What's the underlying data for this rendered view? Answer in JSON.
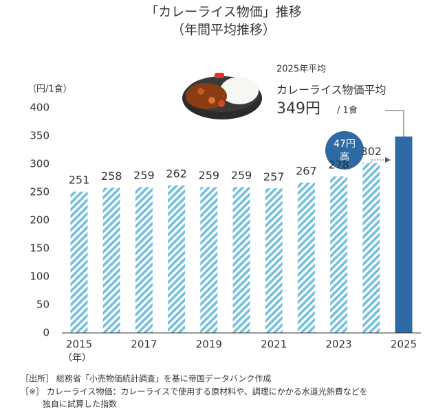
{
  "chart_data": {
    "type": "bar",
    "title": "「カレーライス物価」推移",
    "subtitle": "（年間平均推移）",
    "y_unit": "（円/1食）",
    "x_unit": "（年）",
    "categories": [
      "2015",
      null,
      "2017",
      null,
      "2019",
      null,
      "2021",
      null,
      "2023",
      null,
      "2025"
    ],
    "values": [
      251,
      258,
      259,
      262,
      259,
      259,
      257,
      267,
      278,
      302,
      349
    ],
    "colors": [
      "#74bfdc",
      "#74bfdc",
      "#74bfdc",
      "#74bfdc",
      "#74bfdc",
      "#74bfdc",
      "#74bfdc",
      "#74bfdc",
      "#74bfdc",
      "#74bfdc",
      "#2e6aa3"
    ],
    "patterns": [
      "hatch",
      "hatch",
      "hatch",
      "hatch",
      "hatch",
      "hatch",
      "hatch",
      "hatch",
      "hatch",
      "hatch",
      "solid"
    ],
    "ylim": [
      0,
      400
    ],
    "yticks": [
      0,
      50,
      100,
      150,
      200,
      250,
      300,
      350,
      400
    ],
    "grid": false,
    "annotations": {
      "period": "2025年平均",
      "label": "カレーライス物価平均",
      "value": "349円",
      "unit": "/ 1食",
      "bubble_top": "47円",
      "bubble_bottom": "高"
    },
    "notes": [
      "［出所］ 総務省「小売物価統計調査」を基に帝国データバンク作成",
      "［※］ カレーライス物価：カレーライスで使用する原材料や、調理にかかる水道光熱費などを",
      "独自に試算した指数"
    ]
  }
}
